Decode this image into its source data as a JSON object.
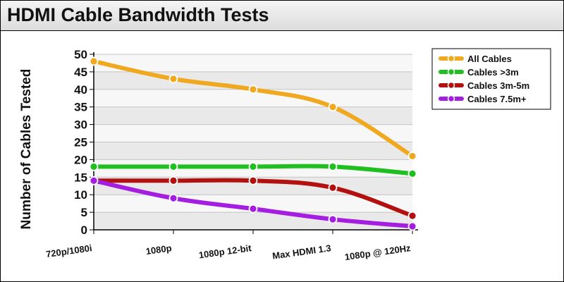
{
  "chart_data": {
    "type": "line",
    "title": "HDMI Cable Bandwidth Tests",
    "xlabel": "",
    "ylabel": "Number of Cables Tested",
    "ylim": [
      0,
      50
    ],
    "yticks": [
      0,
      5,
      10,
      15,
      20,
      25,
      30,
      35,
      40,
      45,
      50
    ],
    "grid": true,
    "legend_position": "top-right",
    "categories": [
      "720p/1080i",
      "1080p",
      "1080p 12-bit",
      "Max HDMI 1.3",
      "1080p @ 120Hz"
    ],
    "series": [
      {
        "name": "All Cables",
        "color": "#f0a81e",
        "values": [
          48,
          43,
          40,
          35,
          21
        ]
      },
      {
        "name": "Cables >3m",
        "color": "#1fbf1f",
        "values": [
          18,
          18,
          18,
          18,
          16
        ]
      },
      {
        "name": "Cables 3m-5m",
        "color": "#b31010",
        "values": [
          14,
          14,
          14,
          12,
          4
        ]
      },
      {
        "name": "Cables 7.5m+",
        "color": "#a51ee0",
        "values": [
          14,
          9,
          6,
          3,
          1
        ]
      }
    ]
  }
}
